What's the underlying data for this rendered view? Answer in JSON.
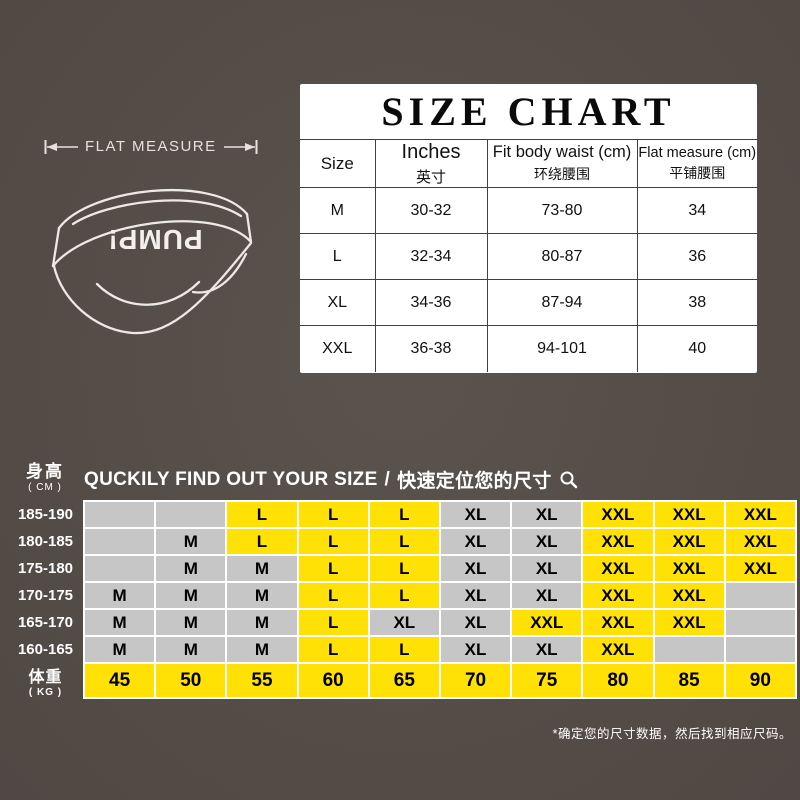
{
  "colors": {
    "background": "#5b534d",
    "panel_white": "#ffffff",
    "cell_gray": "#c6c6c6",
    "cell_yellow": "#ffe105",
    "table_line": "#404040",
    "text_light": "#ffffff",
    "text_dark": "#111111"
  },
  "flat_measure": {
    "label": "FLAT MEASURE"
  },
  "illustration": {
    "brand": "PUMP!"
  },
  "size_chart": {
    "title": "SIZE CHART",
    "columns": [
      {
        "en": "Size",
        "zh": ""
      },
      {
        "en": "Inches",
        "zh": "英寸"
      },
      {
        "en": "Fit body waist (cm)",
        "zh": "环绕腰围"
      },
      {
        "en": "Flat measure (cm)",
        "zh": "平铺腰围"
      }
    ],
    "rows": [
      {
        "size": "M",
        "inches": "30-32",
        "fit_body_waist_cm": "73-80",
        "flat_measure_cm": "34"
      },
      {
        "size": "L",
        "inches": "32-34",
        "fit_body_waist_cm": "80-87",
        "flat_measure_cm": "36"
      },
      {
        "size": "XL",
        "inches": "34-36",
        "fit_body_waist_cm": "87-94",
        "flat_measure_cm": "38"
      },
      {
        "size": "XXL",
        "inches": "36-38",
        "fit_body_waist_cm": "94-101",
        "flat_measure_cm": "40"
      }
    ]
  },
  "finder": {
    "heading_en": "QUCKILY FIND OUT YOUR SIZE",
    "heading_separator": " / ",
    "heading_zh": "快速定位您的尺寸",
    "height_axis": {
      "label": "身高",
      "unit": "( CM )"
    },
    "weight_axis": {
      "label": "体重",
      "unit": "( KG )"
    },
    "weights": [
      "45",
      "50",
      "55",
      "60",
      "65",
      "70",
      "75",
      "80",
      "85",
      "90"
    ],
    "rows": [
      {
        "height": "185-190",
        "cells": [
          {
            "v": "",
            "hl": false
          },
          {
            "v": "",
            "hl": false
          },
          {
            "v": "L",
            "hl": true
          },
          {
            "v": "L",
            "hl": true
          },
          {
            "v": "L",
            "hl": true
          },
          {
            "v": "XL",
            "hl": false
          },
          {
            "v": "XL",
            "hl": false
          },
          {
            "v": "XXL",
            "hl": true
          },
          {
            "v": "XXL",
            "hl": true
          },
          {
            "v": "XXL",
            "hl": true
          }
        ]
      },
      {
        "height": "180-185",
        "cells": [
          {
            "v": "",
            "hl": false
          },
          {
            "v": "M",
            "hl": false
          },
          {
            "v": "L",
            "hl": true
          },
          {
            "v": "L",
            "hl": true
          },
          {
            "v": "L",
            "hl": true
          },
          {
            "v": "XL",
            "hl": false
          },
          {
            "v": "XL",
            "hl": false
          },
          {
            "v": "XXL",
            "hl": true
          },
          {
            "v": "XXL",
            "hl": true
          },
          {
            "v": "XXL",
            "hl": true
          }
        ]
      },
      {
        "height": "175-180",
        "cells": [
          {
            "v": "",
            "hl": false
          },
          {
            "v": "M",
            "hl": false
          },
          {
            "v": "M",
            "hl": false
          },
          {
            "v": "L",
            "hl": true
          },
          {
            "v": "L",
            "hl": true
          },
          {
            "v": "XL",
            "hl": false
          },
          {
            "v": "XL",
            "hl": false
          },
          {
            "v": "XXL",
            "hl": true
          },
          {
            "v": "XXL",
            "hl": true
          },
          {
            "v": "XXL",
            "hl": true
          }
        ]
      },
      {
        "height": "170-175",
        "cells": [
          {
            "v": "M",
            "hl": false
          },
          {
            "v": "M",
            "hl": false
          },
          {
            "v": "M",
            "hl": false
          },
          {
            "v": "L",
            "hl": true
          },
          {
            "v": "L",
            "hl": true
          },
          {
            "v": "XL",
            "hl": false
          },
          {
            "v": "XL",
            "hl": false
          },
          {
            "v": "XXL",
            "hl": true
          },
          {
            "v": "XXL",
            "hl": true
          },
          {
            "v": "",
            "hl": false
          }
        ]
      },
      {
        "height": "165-170",
        "cells": [
          {
            "v": "M",
            "hl": false
          },
          {
            "v": "M",
            "hl": false
          },
          {
            "v": "M",
            "hl": false
          },
          {
            "v": "L",
            "hl": true
          },
          {
            "v": "XL",
            "hl": false
          },
          {
            "v": "XL",
            "hl": false
          },
          {
            "v": "XXL",
            "hl": true
          },
          {
            "v": "XXL",
            "hl": true
          },
          {
            "v": "XXL",
            "hl": true
          },
          {
            "v": "",
            "hl": false
          }
        ]
      },
      {
        "height": "160-165",
        "cells": [
          {
            "v": "M",
            "hl": false
          },
          {
            "v": "M",
            "hl": false
          },
          {
            "v": "M",
            "hl": false
          },
          {
            "v": "L",
            "hl": true
          },
          {
            "v": "L",
            "hl": true
          },
          {
            "v": "XL",
            "hl": false
          },
          {
            "v": "XL",
            "hl": false
          },
          {
            "v": "XXL",
            "hl": true
          },
          {
            "v": "",
            "hl": false
          },
          {
            "v": "",
            "hl": false
          }
        ]
      }
    ],
    "footnote": "*确定您的尺寸数据，然后找到相应尺码。"
  },
  "chart_data": [
    {
      "type": "table",
      "title": "SIZE CHART",
      "columns": [
        "Size",
        "Inches 英寸",
        "Fit body waist (cm) 环绕腰围",
        "Flat measure (cm) 平铺腰围"
      ],
      "rows": [
        [
          "M",
          "30-32",
          "73-80",
          "34"
        ],
        [
          "L",
          "32-34",
          "80-87",
          "36"
        ],
        [
          "XL",
          "34-36",
          "87-94",
          "38"
        ],
        [
          "XXL",
          "36-38",
          "94-101",
          "40"
        ]
      ]
    },
    {
      "type": "heatmap",
      "title": "QUCKILY FIND OUT YOUR SIZE / 快速定位您的尺寸",
      "xlabel": "体重 (KG)",
      "ylabel": "身高 (CM)",
      "x": [
        45,
        50,
        55,
        60,
        65,
        70,
        75,
        80,
        85,
        90
      ],
      "y": [
        "185-190",
        "180-185",
        "175-180",
        "170-175",
        "165-170",
        "160-165"
      ],
      "values": [
        [
          "",
          "",
          "L",
          "L",
          "L",
          "XL",
          "XL",
          "XXL",
          "XXL",
          "XXL"
        ],
        [
          "",
          "M",
          "L",
          "L",
          "L",
          "XL",
          "XL",
          "XXL",
          "XXL",
          "XXL"
        ],
        [
          "",
          "M",
          "M",
          "L",
          "L",
          "XL",
          "XL",
          "XXL",
          "XXL",
          "XXL"
        ],
        [
          "M",
          "M",
          "M",
          "L",
          "L",
          "XL",
          "XL",
          "XXL",
          "XXL",
          ""
        ],
        [
          "M",
          "M",
          "M",
          "L",
          "XL",
          "XL",
          "XXL",
          "XXL",
          "XXL",
          ""
        ],
        [
          "M",
          "M",
          "M",
          "L",
          "L",
          "XL",
          "XL",
          "XXL",
          "",
          ""
        ]
      ],
      "legend_position": "none",
      "grid": true,
      "highlight_color": "#ffe105",
      "base_color": "#c6c6c6"
    }
  ]
}
